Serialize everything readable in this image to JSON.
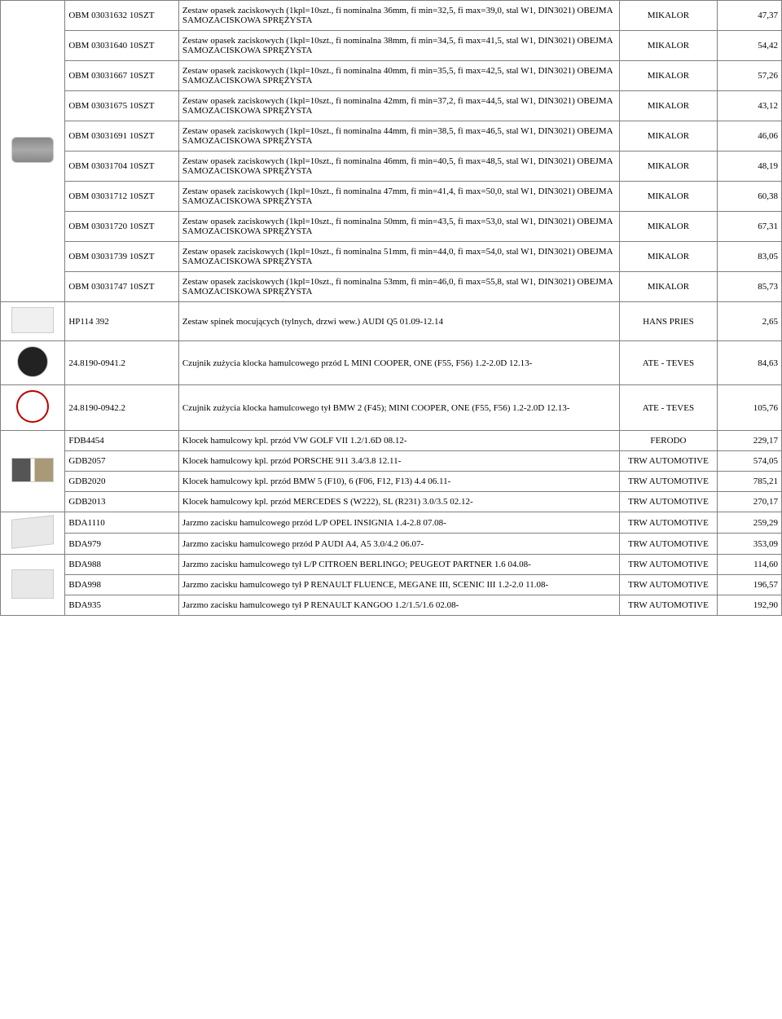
{
  "groups": [
    {
      "iconClass": "icon-clamp",
      "rows": [
        {
          "code": "OBM 03031632 10SZT",
          "desc": "Zestaw opasek zaciskowych (1kpl=10szt., fi nominalna 36mm, fi min=32,5, fi max=39,0, stal W1, DIN3021) OBEJMA SAMOZACISKOWA SPRĘŻYSTA",
          "mfr": "MIKALOR",
          "price": "47,37"
        },
        {
          "code": "OBM 03031640 10SZT",
          "desc": "Zestaw opasek zaciskowych (1kpl=10szt., fi nominalna 38mm, fi min=34,5, fi max=41,5, stal W1, DIN3021) OBEJMA SAMOZACISKOWA SPRĘŻYSTA",
          "mfr": "MIKALOR",
          "price": "54,42"
        },
        {
          "code": "OBM 03031667 10SZT",
          "desc": "Zestaw opasek zaciskowych (1kpl=10szt., fi nominalna 40mm, fi min=35,5, fi max=42,5, stal W1, DIN3021) OBEJMA SAMOZACISKOWA SPRĘŻYSTA",
          "mfr": "MIKALOR",
          "price": "57,26"
        },
        {
          "code": "OBM 03031675 10SZT",
          "desc": "Zestaw opasek zaciskowych (1kpl=10szt., fi nominalna 42mm, fi min=37,2, fi max=44,5, stal W1, DIN3021) OBEJMA SAMOZACISKOWA SPRĘŻYSTA",
          "mfr": "MIKALOR",
          "price": "43,12"
        },
        {
          "code": "OBM 03031691 10SZT",
          "desc": "Zestaw opasek zaciskowych (1kpl=10szt., fi nominalna 44mm, fi min=38,5, fi max=46,5, stal W1, DIN3021) OBEJMA SAMOZACISKOWA SPRĘŻYSTA",
          "mfr": "MIKALOR",
          "price": "46,06"
        },
        {
          "code": "OBM 03031704 10SZT",
          "desc": "Zestaw opasek zaciskowych (1kpl=10szt., fi nominalna 46mm, fi min=40,5, fi max=48,5, stal W1, DIN3021) OBEJMA SAMOZACISKOWA SPRĘŻYSTA",
          "mfr": "MIKALOR",
          "price": "48,19"
        },
        {
          "code": "OBM 03031712 10SZT",
          "desc": "Zestaw opasek zaciskowych (1kpl=10szt., fi nominalna 47mm, fi min=41,4, fi max=50,0, stal W1, DIN3021) OBEJMA SAMOZACISKOWA SPRĘŻYSTA",
          "mfr": "MIKALOR",
          "price": "60,38"
        },
        {
          "code": "OBM 03031720 10SZT",
          "desc": "Zestaw opasek zaciskowych (1kpl=10szt., fi nominalna 50mm, fi min=43,5, fi max=53,0, stal W1, DIN3021) OBEJMA SAMOZACISKOWA SPRĘŻYSTA",
          "mfr": "MIKALOR",
          "price": "67,31"
        },
        {
          "code": "OBM 03031739 10SZT",
          "desc": "Zestaw opasek zaciskowych (1kpl=10szt., fi nominalna 51mm, fi min=44,0, fi max=54,0, stal W1, DIN3021) OBEJMA SAMOZACISKOWA SPRĘŻYSTA",
          "mfr": "MIKALOR",
          "price": "83,05"
        },
        {
          "code": "OBM 03031747 10SZT",
          "desc": "Zestaw opasek zaciskowych (1kpl=10szt., fi nominalna 53mm, fi min=46,0, fi max=55,8, stal W1, DIN3021) OBEJMA SAMOZACISKOWA SPRĘŻYSTA",
          "mfr": "MIKALOR",
          "price": "85,73"
        }
      ]
    },
    {
      "iconClass": "icon-clip",
      "rows": [
        {
          "code": "HP114 392",
          "desc": "Zestaw spinek mocujących (tylnych, drzwi wew.) AUDI Q5 01.09-12.14",
          "mfr": "HANS PRIES",
          "price": "2,65"
        }
      ]
    },
    {
      "iconClass": "icon-sensor",
      "rows": [
        {
          "code": "24.8190-0941.2",
          "desc": "Czujnik zużycia klocka hamulcowego przód L MINI COOPER, ONE (F55, F56) 1.2-2.0D 12.13-",
          "mfr": "ATE - TEVES",
          "price": "84,63"
        }
      ]
    },
    {
      "iconClass": "icon-sensor2",
      "rows": [
        {
          "code": "24.8190-0942.2",
          "desc": "Czujnik zużycia klocka hamulcowego tył BMW 2 (F45); MINI COOPER, ONE (F55, F56) 1.2-2.0D 12.13-",
          "mfr": "ATE - TEVES",
          "price": "105,76"
        }
      ]
    },
    {
      "iconClass": "icon-pads",
      "rows": [
        {
          "code": "FDB4454",
          "desc": "Klocek hamulcowy kpl. przód VW GOLF VII 1.2/1.6D 08.12-",
          "mfr": "FERODO",
          "price": "229,17"
        },
        {
          "code": "GDB2057",
          "desc": "Klocek hamulcowy kpl. przód PORSCHE 911 3.4/3.8 12.11-",
          "mfr": "TRW AUTOMOTIVE",
          "price": "574,05"
        },
        {
          "code": "GDB2020",
          "desc": "Klocek hamulcowy kpl. przód BMW 5 (F10), 6 (F06, F12, F13) 4.4 06.11-",
          "mfr": "TRW AUTOMOTIVE",
          "price": "785,21"
        },
        {
          "code": "GDB2013",
          "desc": "Klocek hamulcowy kpl. przód MERCEDES S (W222), SL (R231) 3.0/3.5 02.12-",
          "mfr": "TRW AUTOMOTIVE",
          "price": "270,17"
        }
      ]
    },
    {
      "iconClass": "icon-caliper",
      "rows": [
        {
          "code": "BDA1110",
          "desc": "Jarzmo zacisku hamulcowego przód L/P OPEL INSIGNIA 1.4-2.8 07.08-",
          "mfr": "TRW AUTOMOTIVE",
          "price": "259,29"
        },
        {
          "code": "BDA979",
          "desc": "Jarzmo zacisku hamulcowego przód P AUDI A4, A5 3.0/4.2 06.07-",
          "mfr": "TRW AUTOMOTIVE",
          "price": "353,09"
        }
      ]
    },
    {
      "iconClass": "icon-caliper2",
      "rows": [
        {
          "code": "BDA988",
          "desc": "Jarzmo zacisku hamulcowego tył L/P CITROEN BERLINGO; PEUGEOT PARTNER 1.6 04.08-",
          "mfr": "TRW AUTOMOTIVE",
          "price": "114,60"
        },
        {
          "code": "BDA998",
          "desc": "Jarzmo zacisku hamulcowego tył P RENAULT FLUENCE, MEGANE III, SCENIC III 1.2-2.0 11.08-",
          "mfr": "TRW AUTOMOTIVE",
          "price": "196,57"
        },
        {
          "code": "BDA935",
          "desc": "Jarzmo zacisku hamulcowego tył P RENAULT KANGOO 1.2/1.5/1.6 02.08-",
          "mfr": "TRW AUTOMOTIVE",
          "price": "192,90"
        }
      ]
    }
  ]
}
